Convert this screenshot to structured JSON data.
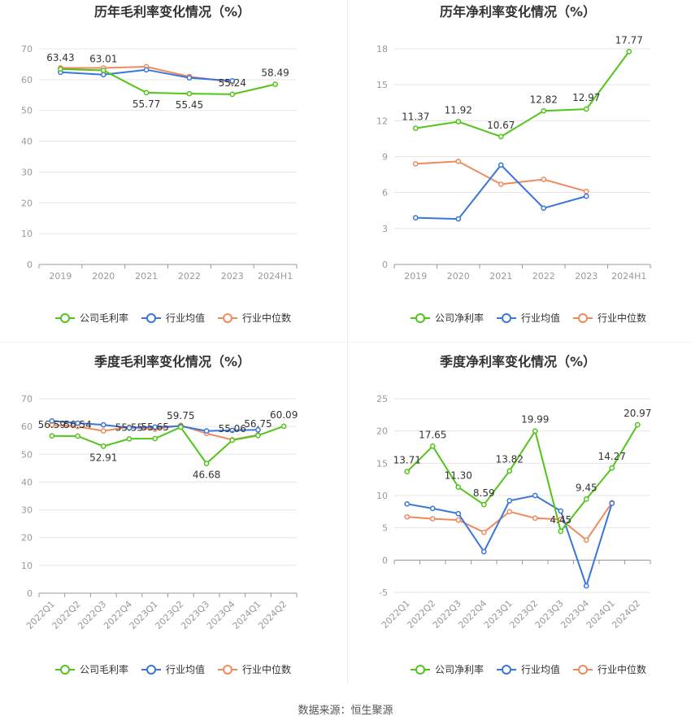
{
  "source": "数据来源：恒生聚源",
  "legend_labels": [
    "公司毛利率",
    "行业均值",
    "行业中位数",
    "公司净利率"
  ],
  "colors": {
    "company": "#52c41a",
    "mean": "#3a75d9",
    "median": "#f08a5d",
    "grid": "#e5e5e5",
    "axis": "#999999"
  },
  "chart_data": [
    {
      "type": "line",
      "title": "历年毛利率变化情况（%）",
      "categories": [
        "2019",
        "2020",
        "2021",
        "2022",
        "2023",
        "2024H1"
      ],
      "ylim": [
        0,
        70
      ],
      "yticks": [
        0,
        10,
        20,
        30,
        40,
        50,
        60,
        70
      ],
      "rotate_x": false,
      "series": [
        {
          "name": "公司毛利率",
          "color": "#52c41a",
          "values": [
            63.43,
            63.01,
            55.77,
            55.45,
            55.24,
            58.49
          ],
          "labels": [
            "63.43",
            "63.01",
            "55.77",
            "55.45",
            "55.24",
            "58.49"
          ]
        },
        {
          "name": "行业均值",
          "color": "#3a75d9",
          "values": [
            62.4,
            61.6,
            63.2,
            60.6,
            59.6,
            null
          ]
        },
        {
          "name": "行业中位数",
          "color": "#f08a5d",
          "values": [
            63.8,
            63.8,
            64.2,
            61.0,
            59.2,
            null
          ]
        }
      ]
    },
    {
      "type": "line",
      "title": "历年净利率变化情况（%）",
      "categories": [
        "2019",
        "2020",
        "2021",
        "2022",
        "2023",
        "2024H1"
      ],
      "ylim": [
        0,
        18
      ],
      "yticks": [
        0,
        3,
        6,
        9,
        12,
        15,
        18
      ],
      "rotate_x": false,
      "series": [
        {
          "name": "公司净利率",
          "color": "#52c41a",
          "values": [
            11.37,
            11.92,
            10.67,
            12.82,
            12.97,
            17.77
          ],
          "labels": [
            "11.37",
            "11.92",
            "10.67",
            "12.82",
            "12.97",
            "17.77"
          ]
        },
        {
          "name": "行业均值",
          "color": "#3a75d9",
          "values": [
            3.9,
            3.8,
            8.3,
            4.7,
            5.7,
            null
          ]
        },
        {
          "name": "行业中位数",
          "color": "#f08a5d",
          "values": [
            8.4,
            8.6,
            6.7,
            7.1,
            6.1,
            null
          ]
        }
      ]
    },
    {
      "type": "line",
      "title": "季度毛利率变化情况（%）",
      "categories": [
        "2022Q1",
        "2022Q2",
        "2022Q3",
        "2022Q4",
        "2023Q1",
        "2023Q2",
        "2023Q3",
        "2023Q4",
        "2024Q1",
        "2024Q2"
      ],
      "ylim": [
        0,
        70
      ],
      "yticks": [
        0,
        10,
        20,
        30,
        40,
        50,
        60,
        70
      ],
      "rotate_x": true,
      "series": [
        {
          "name": "公司毛利率",
          "color": "#52c41a",
          "values": [
            56.59,
            56.54,
            52.91,
            55.55,
            55.65,
            59.75,
            46.68,
            55.06,
            56.75,
            60.09
          ],
          "labels": [
            "56.59",
            "56.54",
            "52.91",
            "55.55",
            "55.65",
            "59.75",
            "46.68",
            "55.06",
            "56.75",
            "60.09"
          ]
        },
        {
          "name": "行业均值",
          "color": "#3a75d9",
          "values": [
            62.0,
            61.2,
            60.6,
            59.5,
            59.8,
            60.1,
            58.4,
            58.6,
            58.8,
            null
          ]
        },
        {
          "name": "行业中位数",
          "color": "#f08a5d",
          "values": [
            60.6,
            60.0,
            58.4,
            59.8,
            59.0,
            60.4,
            57.5,
            55.2,
            57.0,
            null
          ]
        }
      ]
    },
    {
      "type": "line",
      "title": "季度净利率变化情况（%）",
      "categories": [
        "2022Q1",
        "2022Q2",
        "2022Q3",
        "2022Q4",
        "2023Q1",
        "2023Q2",
        "2023Q3",
        "2023Q4",
        "2024Q1",
        "2024Q2"
      ],
      "ylim": [
        -5,
        25
      ],
      "yticks": [
        -5,
        0,
        5,
        10,
        15,
        20,
        25
      ],
      "rotate_x": true,
      "series": [
        {
          "name": "公司净利率",
          "color": "#52c41a",
          "values": [
            13.71,
            17.65,
            11.3,
            8.59,
            13.82,
            19.99,
            4.45,
            9.45,
            14.27,
            20.97
          ],
          "labels": [
            "13.71",
            "17.65",
            "11.30",
            "8.59",
            "13.82",
            "19.99",
            "4.45",
            "9.45",
            "14.27",
            "20.97"
          ]
        },
        {
          "name": "行业均值",
          "color": "#3a75d9",
          "values": [
            8.7,
            8.0,
            7.2,
            1.3,
            9.2,
            10.0,
            7.6,
            -4.0,
            8.8,
            null
          ]
        },
        {
          "name": "行业中位数",
          "color": "#f08a5d",
          "values": [
            6.7,
            6.4,
            6.2,
            4.3,
            7.5,
            6.5,
            6.3,
            3.1,
            8.9,
            null
          ]
        }
      ]
    }
  ]
}
